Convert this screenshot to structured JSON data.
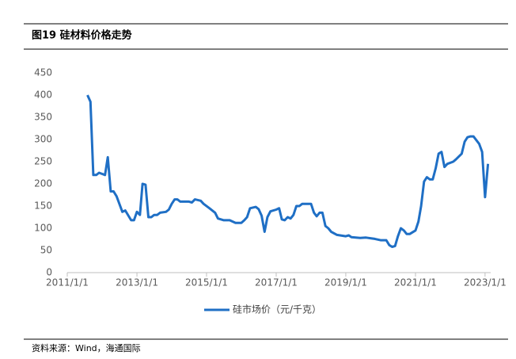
{
  "chart_data": {
    "type": "line",
    "title": "图19  硅材料价格走势",
    "source": "资料来源：Wind，海通国际",
    "x": [
      "2011/8/1",
      "2011/9/1",
      "2011/10/1",
      "2011/11/1",
      "2011/12/1",
      "2012/2/1",
      "2012/3/1",
      "2012/4/1",
      "2012/5/1",
      "2012/6/1",
      "2012/8/1",
      "2012/9/1",
      "2012/11/1",
      "2012/12/1",
      "2013/1/1",
      "2013/2/1",
      "2013/3/1",
      "2013/4/1",
      "2013/5/1",
      "2013/6/1",
      "2013/7/1",
      "2013/8/1",
      "2013/9/1",
      "2013/11/1",
      "2013/12/1",
      "2014/1/1",
      "2014/2/1",
      "2014/3/1",
      "2014/4/1",
      "2014/7/1",
      "2014/8/1",
      "2014/9/1",
      "2014/11/1",
      "2014/12/1",
      "2015/2/1",
      "2015/4/1",
      "2015/5/1",
      "2015/7/1",
      "2015/9/1",
      "2015/11/1",
      "2016/1/1",
      "2016/2/1",
      "2016/3/1",
      "2016/4/1",
      "2016/6/1",
      "2016/7/1",
      "2016/8/1",
      "2016/9/1",
      "2016/10/1",
      "2016/11/1",
      "2017/1/1",
      "2017/2/1",
      "2017/3/1",
      "2017/4/1",
      "2017/5/1",
      "2017/6/1",
      "2017/7/1",
      "2017/8/1",
      "2017/9/1",
      "2017/10/1",
      "2018/1/1",
      "2018/2/1",
      "2018/3/1",
      "2018/4/1",
      "2018/5/1",
      "2018/6/1",
      "2018/7/1",
      "2018/8/1",
      "2018/10/1",
      "2019/1/1",
      "2019/2/1",
      "2019/3/1",
      "2019/6/1",
      "2019/8/1",
      "2019/10/1",
      "2019/11/1",
      "2020/1/1",
      "2020/3/1",
      "2020/4/1",
      "2020/5/1",
      "2020/6/1",
      "2020/7/1",
      "2020/8/1",
      "2020/9/1",
      "2020/10/1",
      "2020/11/1",
      "2021/1/1",
      "2021/2/1",
      "2021/3/1",
      "2021/4/1",
      "2021/5/1",
      "2021/6/1",
      "2021/7/1",
      "2021/8/1",
      "2021/9/1",
      "2021/10/1",
      "2021/11/1",
      "2021/12/1",
      "2022/2/1",
      "2022/3/1",
      "2022/5/1",
      "2022/6/1",
      "2022/7/1",
      "2022/8/1",
      "2022/9/1",
      "2022/11/1",
      "2022/12/1",
      "2023/1/1",
      "2023/2/1"
    ],
    "series": [
      {
        "name": "硅市场价（元/千克）",
        "color": "#1f6fc5",
        "values": [
          400,
          385,
          220,
          220,
          225,
          220,
          260,
          183,
          183,
          172,
          137,
          140,
          118,
          118,
          137,
          130,
          200,
          198,
          125,
          125,
          130,
          130,
          135,
          137,
          142,
          155,
          165,
          165,
          160,
          160,
          158,
          165,
          162,
          155,
          145,
          135,
          122,
          118,
          118,
          112,
          112,
          118,
          125,
          145,
          148,
          143,
          128,
          92,
          125,
          138,
          142,
          145,
          120,
          118,
          125,
          122,
          130,
          150,
          150,
          155,
          155,
          135,
          127,
          135,
          135,
          105,
          100,
          92,
          85,
          82,
          84,
          80,
          78,
          79,
          77,
          76,
          73,
          73,
          62,
          58,
          60,
          82,
          100,
          95,
          87,
          87,
          95,
          115,
          150,
          205,
          215,
          210,
          210,
          235,
          268,
          272,
          238,
          245,
          250,
          255,
          268,
          295,
          305,
          307,
          307,
          290,
          272,
          170,
          245
        ]
      }
    ],
    "xlim": [
      "2011/1/1",
      "2023/3/1"
    ],
    "xticks": [
      "2011/1/1",
      "2013/1/1",
      "2015/1/1",
      "2017/1/1",
      "2019/1/1",
      "2021/1/1",
      "2023/1/1"
    ],
    "ylim": [
      0,
      450
    ],
    "yticks": [
      0,
      50,
      100,
      150,
      200,
      250,
      300,
      350,
      400,
      450
    ],
    "grid": false,
    "legend": "bottom"
  }
}
